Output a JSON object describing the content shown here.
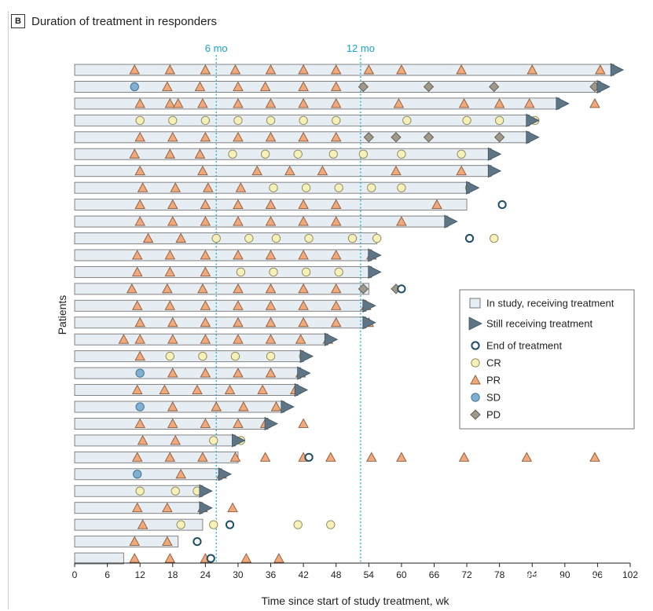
{
  "panel": {
    "letter": "B",
    "title": "Duration of treatment in responders"
  },
  "watermark": "知乎 @pete02",
  "colors": {
    "bar_fill": "#e6eef4",
    "bar_stroke": "#777777",
    "still": "#5d7585",
    "cr": "#f7f0b8",
    "pr": "#f1a97c",
    "sd": "#7fb0d3",
    "pd": "#a09888",
    "end_stroke": "#1e4f66",
    "ref_line": "#16a3c8"
  },
  "chart_data": {
    "type": "swimmer",
    "xlabel": "Time since start of study treatment, wk",
    "ylabel": "Patients",
    "xlim": [
      0,
      102
    ],
    "xticks": [
      0,
      6,
      12,
      18,
      24,
      30,
      36,
      42,
      48,
      54,
      60,
      66,
      72,
      78,
      84,
      90,
      96,
      102
    ],
    "reference_lines": [
      {
        "x": 26,
        "label": "6 mo"
      },
      {
        "x": 52.5,
        "label": "12 mo"
      }
    ],
    "legend": {
      "position": "right",
      "items": [
        {
          "kind": "bar",
          "label": "In study, receiving treatment"
        },
        {
          "kind": "still",
          "label": "Still receiving treatment"
        },
        {
          "kind": "end",
          "label": "End of treatment"
        },
        {
          "kind": "cr",
          "label": "CR"
        },
        {
          "kind": "pr",
          "label": "PR"
        },
        {
          "kind": "sd",
          "label": "SD"
        },
        {
          "kind": "pd",
          "label": "PD"
        }
      ]
    },
    "patients": [
      {
        "bar": 99,
        "still": 99,
        "end": null,
        "events": [
          [
            "pr",
            11
          ],
          [
            "pr",
            17.5
          ],
          [
            "pr",
            24
          ],
          [
            "pr",
            29.5
          ],
          [
            "pr",
            36
          ],
          [
            "pr",
            42
          ],
          [
            "pr",
            48
          ],
          [
            "pr",
            54
          ],
          [
            "pr",
            60
          ],
          [
            "pr",
            71
          ],
          [
            "pr",
            84
          ],
          [
            "pr",
            96.5
          ]
        ]
      },
      {
        "bar": 96.5,
        "still": 96.5,
        "end": null,
        "events": [
          [
            "sd",
            11
          ],
          [
            "pr",
            17
          ],
          [
            "pr",
            23
          ],
          [
            "pr",
            30
          ],
          [
            "pr",
            35
          ],
          [
            "pr",
            42
          ],
          [
            "pr",
            48
          ],
          [
            "pd",
            53
          ],
          [
            "pd",
            65
          ],
          [
            "pd",
            77
          ],
          [
            "pd",
            95.5
          ]
        ]
      },
      {
        "bar": 89,
        "still": 89,
        "end": null,
        "events": [
          [
            "pr",
            12
          ],
          [
            "pr",
            17.5
          ],
          [
            "pr",
            19
          ],
          [
            "pr",
            23.5
          ],
          [
            "pr",
            30
          ],
          [
            "pr",
            36
          ],
          [
            "pr",
            42
          ],
          [
            "pr",
            48
          ],
          [
            "pr",
            59.5
          ],
          [
            "pr",
            71.5
          ],
          [
            "pr",
            78
          ],
          [
            "pr",
            83.5
          ],
          [
            "pr",
            95.5
          ]
        ]
      },
      {
        "bar": 83.5,
        "still": 83.5,
        "end": null,
        "events": [
          [
            "cr",
            12
          ],
          [
            "cr",
            18
          ],
          [
            "cr",
            24
          ],
          [
            "cr",
            30
          ],
          [
            "cr",
            36
          ],
          [
            "cr",
            42
          ],
          [
            "cr",
            48
          ],
          [
            "cr",
            61
          ],
          [
            "cr",
            72
          ],
          [
            "cr",
            78
          ],
          [
            "cr",
            84.5
          ]
        ]
      },
      {
        "bar": 83.5,
        "still": 83.5,
        "end": null,
        "events": [
          [
            "pr",
            12
          ],
          [
            "pr",
            18
          ],
          [
            "pr",
            24
          ],
          [
            "pr",
            30
          ],
          [
            "pr",
            36
          ],
          [
            "pr",
            42
          ],
          [
            "pr",
            48
          ],
          [
            "pd",
            54
          ],
          [
            "pd",
            59
          ],
          [
            "pd",
            65
          ],
          [
            "pd",
            78
          ]
        ]
      },
      {
        "bar": 76.5,
        "still": 76.5,
        "end": null,
        "events": [
          [
            "pr",
            11
          ],
          [
            "pr",
            17.5
          ],
          [
            "pr",
            23
          ],
          [
            "cr",
            29
          ],
          [
            "cr",
            35
          ],
          [
            "cr",
            41
          ],
          [
            "cr",
            47.5
          ],
          [
            "cr",
            53
          ],
          [
            "cr",
            60
          ],
          [
            "cr",
            71
          ]
        ]
      },
      {
        "bar": 76.5,
        "still": 76.5,
        "end": null,
        "events": [
          [
            "pr",
            12
          ],
          [
            "pr",
            23.5
          ],
          [
            "pr",
            33.5
          ],
          [
            "pr",
            39.5
          ],
          [
            "pr",
            45.5
          ],
          [
            "pr",
            59
          ],
          [
            "pr",
            71
          ]
        ]
      },
      {
        "bar": 72.5,
        "still": 72.5,
        "end": null,
        "events": [
          [
            "pr",
            12.5
          ],
          [
            "pr",
            18.5
          ],
          [
            "pr",
            24.5
          ],
          [
            "pr",
            30.5
          ],
          [
            "cr",
            36.5
          ],
          [
            "cr",
            42.5
          ],
          [
            "cr",
            48.5
          ],
          [
            "cr",
            54.5
          ],
          [
            "cr",
            60
          ],
          [
            "cr",
            72.5
          ]
        ]
      },
      {
        "bar": 72,
        "still": null,
        "end": 78.5,
        "events": [
          [
            "pr",
            12
          ],
          [
            "pr",
            18
          ],
          [
            "pr",
            24
          ],
          [
            "pr",
            30
          ],
          [
            "pr",
            36
          ],
          [
            "pr",
            42
          ],
          [
            "pr",
            48
          ],
          [
            "pr",
            66.5
          ]
        ]
      },
      {
        "bar": 68.5,
        "still": 68.5,
        "end": null,
        "events": [
          [
            "pr",
            12
          ],
          [
            "pr",
            18
          ],
          [
            "pr",
            24
          ],
          [
            "pr",
            30
          ],
          [
            "pr",
            36
          ],
          [
            "pr",
            42
          ],
          [
            "pr",
            48
          ],
          [
            "pr",
            60
          ]
        ]
      },
      {
        "bar": 55.5,
        "still": null,
        "end": 72.5,
        "events": [
          [
            "pr",
            13.5
          ],
          [
            "pr",
            19.5
          ],
          [
            "cr",
            26
          ],
          [
            "cr",
            32
          ],
          [
            "cr",
            37
          ],
          [
            "cr",
            43
          ],
          [
            "cr",
            51
          ],
          [
            "cr",
            55.5
          ],
          [
            "cr",
            77
          ]
        ]
      },
      {
        "bar": 54.5,
        "still": 54.5,
        "end": null,
        "events": [
          [
            "pr",
            11.5
          ],
          [
            "pr",
            17.5
          ],
          [
            "pr",
            24
          ],
          [
            "pr",
            30
          ],
          [
            "pr",
            36
          ],
          [
            "pr",
            42
          ],
          [
            "pr",
            48
          ],
          [
            "pr",
            54.5
          ]
        ]
      },
      {
        "bar": 54.5,
        "still": 54.5,
        "end": null,
        "events": [
          [
            "pr",
            11.5
          ],
          [
            "pr",
            17.5
          ],
          [
            "pr",
            24
          ],
          [
            "cr",
            30.5
          ],
          [
            "cr",
            36.5
          ],
          [
            "cr",
            42.5
          ],
          [
            "cr",
            48.5
          ]
        ]
      },
      {
        "bar": 54,
        "still": null,
        "end": 60,
        "events": [
          [
            "pr",
            10.5
          ],
          [
            "pr",
            17
          ],
          [
            "pr",
            23.5
          ],
          [
            "pr",
            30
          ],
          [
            "pr",
            36
          ],
          [
            "pr",
            42
          ],
          [
            "pr",
            48
          ],
          [
            "pd",
            53
          ],
          [
            "pd",
            59
          ]
        ]
      },
      {
        "bar": 53.5,
        "still": 53.5,
        "end": null,
        "events": [
          [
            "pr",
            11.5
          ],
          [
            "pr",
            17.5
          ],
          [
            "pr",
            24
          ],
          [
            "pr",
            30
          ],
          [
            "pr",
            36
          ],
          [
            "pr",
            42
          ],
          [
            "pr",
            48
          ],
          [
            "pr",
            53.5
          ]
        ]
      },
      {
        "bar": 53.5,
        "still": 53.5,
        "end": null,
        "events": [
          [
            "pr",
            12
          ],
          [
            "pr",
            18
          ],
          [
            "pr",
            24
          ],
          [
            "pr",
            30
          ],
          [
            "pr",
            36
          ],
          [
            "pr",
            42
          ],
          [
            "pr",
            48
          ],
          [
            "pr",
            54
          ]
        ]
      },
      {
        "bar": 46.5,
        "still": 46.5,
        "end": null,
        "events": [
          [
            "pr",
            9
          ],
          [
            "pr",
            12
          ],
          [
            "pr",
            18
          ],
          [
            "pr",
            24
          ],
          [
            "pr",
            30
          ],
          [
            "pr",
            36
          ],
          [
            "pr",
            41.5
          ],
          [
            "pr",
            46.5
          ]
        ]
      },
      {
        "bar": 42,
        "still": 42,
        "end": null,
        "events": [
          [
            "pr",
            12
          ],
          [
            "cr",
            17.5
          ],
          [
            "cr",
            23.5
          ],
          [
            "cr",
            29.5
          ],
          [
            "cr",
            36
          ],
          [
            "cr",
            42
          ]
        ]
      },
      {
        "bar": 41.5,
        "still": 41.5,
        "end": null,
        "events": [
          [
            "sd",
            12
          ],
          [
            "pr",
            18
          ],
          [
            "pr",
            24
          ],
          [
            "pr",
            30
          ],
          [
            "pr",
            36
          ],
          [
            "pr",
            41.5
          ]
        ]
      },
      {
        "bar": 41,
        "still": 41,
        "end": null,
        "events": [
          [
            "pr",
            11.5
          ],
          [
            "pr",
            16.5
          ],
          [
            "pr",
            22.5
          ],
          [
            "pr",
            28.5
          ],
          [
            "pr",
            34.5
          ],
          [
            "pr",
            40.5
          ]
        ]
      },
      {
        "bar": 38.5,
        "still": 38.5,
        "end": null,
        "events": [
          [
            "sd",
            12
          ],
          [
            "pr",
            18
          ],
          [
            "pr",
            26
          ],
          [
            "pr",
            31
          ],
          [
            "pr",
            37
          ]
        ]
      },
      {
        "bar": 35.5,
        "still": 35.5,
        "end": null,
        "events": [
          [
            "pr",
            12
          ],
          [
            "pr",
            18
          ],
          [
            "pr",
            24
          ],
          [
            "pr",
            30
          ],
          [
            "pr",
            35
          ],
          [
            "pr",
            42
          ]
        ]
      },
      {
        "bar": 29.5,
        "still": 29.5,
        "end": null,
        "events": [
          [
            "pr",
            12.5
          ],
          [
            "pr",
            18.5
          ],
          [
            "cr",
            25.5
          ],
          [
            "cr",
            30.5
          ]
        ]
      },
      {
        "bar": 30,
        "still": null,
        "end": 43,
        "events": [
          [
            "pr",
            11.5
          ],
          [
            "pr",
            17.5
          ],
          [
            "pr",
            23.5
          ],
          [
            "pr",
            29.5
          ],
          [
            "pr",
            35
          ],
          [
            "pr",
            42
          ],
          [
            "pr",
            47
          ],
          [
            "pr",
            54.5
          ],
          [
            "pr",
            60
          ],
          [
            "pr",
            71.5
          ],
          [
            "pr",
            83
          ],
          [
            "pr",
            95.5
          ]
        ]
      },
      {
        "bar": 27,
        "still": 27,
        "end": null,
        "events": [
          [
            "sd",
            11.5
          ],
          [
            "pr",
            19.5
          ],
          [
            "pr",
            27
          ]
        ]
      },
      {
        "bar": 23.5,
        "still": 23.5,
        "end": null,
        "events": [
          [
            "cr",
            12
          ],
          [
            "cr",
            18.5
          ],
          [
            "cr",
            22.5
          ]
        ]
      },
      {
        "bar": 23.5,
        "still": 23.5,
        "end": null,
        "events": [
          [
            "pr",
            11.5
          ],
          [
            "pr",
            17
          ],
          [
            "pr",
            23.5
          ],
          [
            "pr",
            29
          ]
        ]
      },
      {
        "bar": 23.5,
        "still": null,
        "end": 28.5,
        "events": [
          [
            "pr",
            12.5
          ],
          [
            "cr",
            19.5
          ],
          [
            "cr",
            25.5
          ],
          [
            "cr",
            41
          ],
          [
            "cr",
            47
          ]
        ]
      },
      {
        "bar": 19,
        "still": null,
        "end": 22.5,
        "events": [
          [
            "pr",
            11
          ],
          [
            "pr",
            17
          ]
        ]
      },
      {
        "bar": 9,
        "still": null,
        "end": 25,
        "events": [
          [
            "pr",
            11
          ],
          [
            "pr",
            17.5
          ],
          [
            "pr",
            24
          ],
          [
            "pr",
            31.5
          ],
          [
            "pr",
            37.5
          ]
        ]
      }
    ]
  }
}
